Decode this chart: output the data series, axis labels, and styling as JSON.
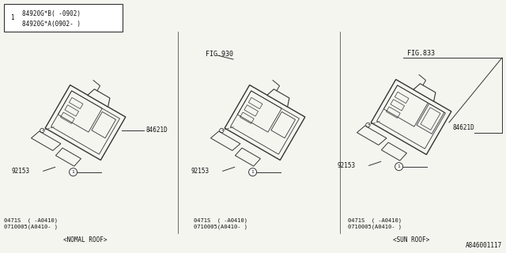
{
  "bg_color": "#f5f5f0",
  "line_color": "#333333",
  "text_color": "#111111",
  "fig_number": "A846001117",
  "legend_lines": [
    "84920G*B( -0902)",
    "84920G*A(0902- )"
  ],
  "labels": {
    "fig930": "FIG.930",
    "fig833": "FIG.833",
    "normal_roof": "<NOMAL ROOF>",
    "sun_roof": "<SUN ROOF>",
    "part_84621D": "84621D",
    "part_92153": "92153",
    "part_0471S_1": "0471S  ( -A0410)",
    "part_0471S_2": "0710005(A0410- )"
  }
}
